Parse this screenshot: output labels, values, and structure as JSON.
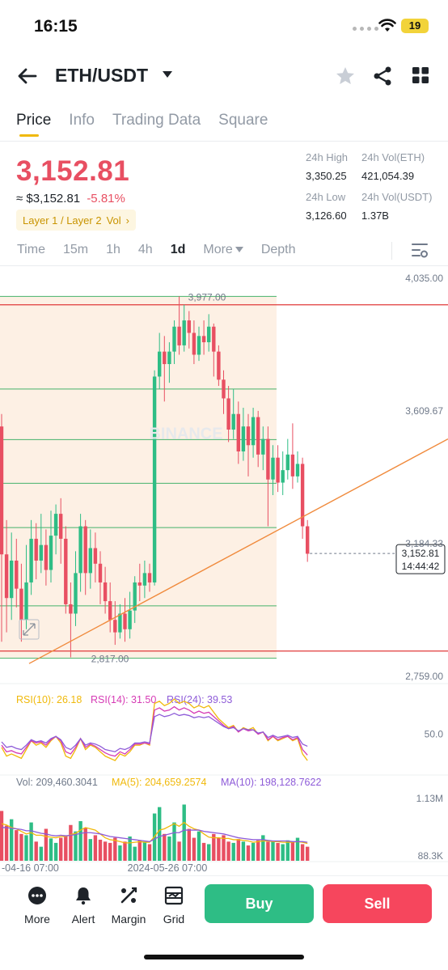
{
  "status_bar": {
    "time": "16:15",
    "battery": "19"
  },
  "header": {
    "pair": "ETH/USDT",
    "icons": [
      "back-arrow-icon",
      "caret-down-icon",
      "star-icon",
      "share-icon",
      "grid-icon"
    ]
  },
  "tabs": [
    {
      "label": "Price",
      "active": true
    },
    {
      "label": "Info"
    },
    {
      "label": "Trading Data"
    },
    {
      "label": "Square"
    }
  ],
  "price": {
    "last": "3,152.81",
    "approx": "≈ $3,152.81",
    "change": "-5.81%",
    "tags": "Layer 1 / Layer 2",
    "tag_vol": "Vol",
    "tag_arrow": "›"
  },
  "stats": {
    "high_label": "24h High",
    "high": "3,350.25",
    "vol_eth_label": "24h Vol(ETH)",
    "vol_eth": "421,054.39",
    "low_label": "24h Low",
    "low": "3,126.60",
    "vol_usdt_label": "24h Vol(USDT)",
    "vol_usdt": "1.37B"
  },
  "intervals": {
    "time": "Time",
    "m15": "15m",
    "h1": "1h",
    "h4": "4h",
    "d1": "1d",
    "more": "More",
    "depth": "Depth",
    "active": "1d"
  },
  "colors": {
    "up": "#2ebd85",
    "down": "#e84f62",
    "accent": "#f0b90b",
    "trendline": "#f08a3c",
    "level": "#e03a3a"
  },
  "chart_data": {
    "type": "candlestick",
    "price_axis": [
      "4,035.00",
      "3,609.67",
      "3,184.33",
      "2,759.00"
    ],
    "ylim": [
      2759,
      4035
    ],
    "box_high": "3,977.00",
    "box_low": "2,817.00",
    "current": "3,152.81",
    "countdown": "14:44:42",
    "watermark": "BINANCE",
    "candles": [
      {
        "o": 3560,
        "c": 3150,
        "h": 3600,
        "l": 2870
      },
      {
        "o": 3150,
        "c": 3010,
        "h": 3260,
        "l": 2900
      },
      {
        "o": 3010,
        "c": 3130,
        "h": 3220,
        "l": 2940
      },
      {
        "o": 3130,
        "c": 3040,
        "h": 3200,
        "l": 2980
      },
      {
        "o": 3040,
        "c": 2940,
        "h": 3120,
        "l": 2870
      },
      {
        "o": 2940,
        "c": 3060,
        "h": 3180,
        "l": 2910
      },
      {
        "o": 3060,
        "c": 3200,
        "h": 3260,
        "l": 3020
      },
      {
        "o": 3200,
        "c": 3130,
        "h": 3250,
        "l": 3070
      },
      {
        "o": 3130,
        "c": 3180,
        "h": 3280,
        "l": 3090
      },
      {
        "o": 3180,
        "c": 3100,
        "h": 3230,
        "l": 3050
      },
      {
        "o": 3100,
        "c": 3210,
        "h": 3290,
        "l": 3060
      },
      {
        "o": 3210,
        "c": 3280,
        "h": 3310,
        "l": 3150
      },
      {
        "o": 3280,
        "c": 3200,
        "h": 3330,
        "l": 3120
      },
      {
        "o": 3200,
        "c": 2990,
        "h": 3240,
        "l": 2960
      },
      {
        "o": 2990,
        "c": 2960,
        "h": 3060,
        "l": 2820
      },
      {
        "o": 2960,
        "c": 3090,
        "h": 3160,
        "l": 2920
      },
      {
        "o": 3090,
        "c": 3240,
        "h": 3280,
        "l": 3030
      },
      {
        "o": 3240,
        "c": 3090,
        "h": 3260,
        "l": 3020
      },
      {
        "o": 3090,
        "c": 3170,
        "h": 3230,
        "l": 3040
      },
      {
        "o": 3170,
        "c": 3120,
        "h": 3220,
        "l": 3060
      },
      {
        "o": 3120,
        "c": 3060,
        "h": 3160,
        "l": 2990
      },
      {
        "o": 3060,
        "c": 3000,
        "h": 3110,
        "l": 2960
      },
      {
        "o": 3000,
        "c": 2940,
        "h": 3060,
        "l": 2900
      },
      {
        "o": 2940,
        "c": 2900,
        "h": 3000,
        "l": 2860
      },
      {
        "o": 2900,
        "c": 2960,
        "h": 2990,
        "l": 2880
      },
      {
        "o": 2960,
        "c": 2910,
        "h": 3010,
        "l": 2870
      },
      {
        "o": 2910,
        "c": 2970,
        "h": 3030,
        "l": 2880
      },
      {
        "o": 2970,
        "c": 3060,
        "h": 3080,
        "l": 2930
      },
      {
        "o": 3060,
        "c": 3050,
        "h": 3120,
        "l": 3000
      },
      {
        "o": 3050,
        "c": 3090,
        "h": 3130,
        "l": 3010
      },
      {
        "o": 3090,
        "c": 3060,
        "h": 3120,
        "l": 3030
      },
      {
        "o": 3060,
        "c": 3720,
        "h": 3740,
        "l": 3050
      },
      {
        "o": 3720,
        "c": 3800,
        "h": 3860,
        "l": 3680
      },
      {
        "o": 3800,
        "c": 3760,
        "h": 3850,
        "l": 3640
      },
      {
        "o": 3760,
        "c": 3800,
        "h": 3830,
        "l": 3700
      },
      {
        "o": 3800,
        "c": 3880,
        "h": 3900,
        "l": 3760
      },
      {
        "o": 3880,
        "c": 3820,
        "h": 3977,
        "l": 3790
      },
      {
        "o": 3820,
        "c": 3900,
        "h": 3950,
        "l": 3800
      },
      {
        "o": 3900,
        "c": 3860,
        "h": 3930,
        "l": 3810
      },
      {
        "o": 3860,
        "c": 3790,
        "h": 3900,
        "l": 3760
      },
      {
        "o": 3790,
        "c": 3850,
        "h": 3880,
        "l": 3770
      },
      {
        "o": 3850,
        "c": 3830,
        "h": 3900,
        "l": 3790
      },
      {
        "o": 3830,
        "c": 3880,
        "h": 3920,
        "l": 3800
      },
      {
        "o": 3880,
        "c": 3800,
        "h": 3890,
        "l": 3720
      },
      {
        "o": 3800,
        "c": 3710,
        "h": 3820,
        "l": 3690
      },
      {
        "o": 3710,
        "c": 3650,
        "h": 3740,
        "l": 3600
      },
      {
        "o": 3650,
        "c": 3550,
        "h": 3690,
        "l": 3510
      },
      {
        "o": 3550,
        "c": 3600,
        "h": 3680,
        "l": 3520
      },
      {
        "o": 3600,
        "c": 3480,
        "h": 3640,
        "l": 3440
      },
      {
        "o": 3480,
        "c": 3560,
        "h": 3620,
        "l": 3450
      },
      {
        "o": 3560,
        "c": 3500,
        "h": 3600,
        "l": 3400
      },
      {
        "o": 3500,
        "c": 3590,
        "h": 3620,
        "l": 3460
      },
      {
        "o": 3590,
        "c": 3470,
        "h": 3610,
        "l": 3430
      },
      {
        "o": 3470,
        "c": 3520,
        "h": 3560,
        "l": 3420
      },
      {
        "o": 3520,
        "c": 3390,
        "h": 3560,
        "l": 3240
      },
      {
        "o": 3390,
        "c": 3460,
        "h": 3500,
        "l": 3340
      },
      {
        "o": 3460,
        "c": 3380,
        "h": 3500,
        "l": 3350
      },
      {
        "o": 3380,
        "c": 3420,
        "h": 3480,
        "l": 3340
      },
      {
        "o": 3420,
        "c": 3470,
        "h": 3520,
        "l": 3390
      },
      {
        "o": 3470,
        "c": 3400,
        "h": 3570,
        "l": 3360
      },
      {
        "o": 3400,
        "c": 3440,
        "h": 3480,
        "l": 3380
      },
      {
        "o": 3440,
        "c": 3240,
        "h": 3460,
        "l": 3200
      },
      {
        "o": 3240,
        "c": 3152,
        "h": 3260,
        "l": 3126
      }
    ],
    "rsi": {
      "labels": [
        "RSI(10): 26.18",
        "RSI(14): 31.50",
        "RSI(24): 39.53"
      ],
      "axis": "50.0",
      "colors": [
        "#f0b90b",
        "#d63bb5",
        "#8e5bd8"
      ],
      "rsi10": [
        38,
        30,
        32,
        30,
        28,
        36,
        44,
        40,
        42,
        38,
        44,
        48,
        42,
        30,
        28,
        36,
        46,
        36,
        40,
        38,
        34,
        30,
        28,
        26,
        32,
        30,
        34,
        40,
        40,
        42,
        40,
        78,
        80,
        76,
        78,
        82,
        78,
        80,
        78,
        74,
        76,
        74,
        76,
        70,
        64,
        60,
        56,
        58,
        52,
        56,
        54,
        56,
        50,
        52,
        44,
        48,
        44,
        46,
        48,
        44,
        46,
        32,
        26
      ],
      "rsi14": [
        40,
        34,
        35,
        33,
        32,
        38,
        44,
        42,
        43,
        40,
        45,
        48,
        44,
        34,
        32,
        38,
        46,
        38,
        41,
        39,
        36,
        33,
        31,
        30,
        34,
        32,
        36,
        41,
        41,
        42,
        41,
        72,
        74,
        71,
        72,
        75,
        72,
        74,
        72,
        69,
        71,
        69,
        70,
        66,
        62,
        58,
        55,
        57,
        52,
        55,
        53,
        54,
        50,
        52,
        45,
        48,
        45,
        47,
        48,
        45,
        47,
        36,
        31
      ],
      "rsi24": [
        43,
        38,
        39,
        37,
        36,
        40,
        45,
        43,
        44,
        42,
        46,
        48,
        45,
        38,
        36,
        40,
        46,
        40,
        42,
        41,
        39,
        36,
        35,
        34,
        37,
        36,
        38,
        42,
        42,
        43,
        42,
        66,
        68,
        66,
        67,
        69,
        67,
        68,
        67,
        65,
        66,
        65,
        66,
        63,
        60,
        57,
        55,
        56,
        53,
        55,
        54,
        54,
        51,
        52,
        47,
        49,
        47,
        48,
        49,
        47,
        48,
        41,
        39
      ]
    },
    "volume": {
      "labels": [
        "Vol: 209,460.3041",
        "MA(5): 204,659.2574",
        "MA(10): 198,128.7622"
      ],
      "axis": [
        "1.13M",
        "88.3K"
      ],
      "dates": [
        "-04-16 07:00",
        "2024-05-26 07:00"
      ],
      "colors": [
        "#f0b90b",
        "#8e5bd8"
      ],
      "values": [
        0.78,
        0.55,
        0.65,
        0.48,
        0.42,
        0.4,
        0.6,
        0.3,
        0.22,
        0.5,
        0.35,
        0.28,
        0.36,
        0.4,
        0.56,
        0.46,
        0.62,
        0.52,
        0.34,
        0.4,
        0.33,
        0.3,
        0.28,
        0.36,
        0.24,
        0.3,
        0.38,
        0.22,
        0.32,
        0.3,
        0.26,
        0.74,
        0.84,
        0.42,
        0.38,
        0.6,
        0.3,
        0.88,
        0.5,
        0.36,
        0.46,
        0.28,
        0.26,
        0.42,
        0.36,
        0.4,
        0.3,
        0.28,
        0.34,
        0.3,
        0.24,
        0.28,
        0.32,
        0.4,
        0.3,
        0.3,
        0.28,
        0.26,
        0.32,
        0.3,
        0.36,
        0.26,
        0.22
      ],
      "ma5": [
        0.58,
        0.56,
        0.52,
        0.5,
        0.46,
        0.42,
        0.44,
        0.4,
        0.4,
        0.38,
        0.37,
        0.36,
        0.38,
        0.38,
        0.41,
        0.43,
        0.48,
        0.52,
        0.5,
        0.48,
        0.42,
        0.36,
        0.33,
        0.32,
        0.3,
        0.28,
        0.28,
        0.29,
        0.3,
        0.29,
        0.29,
        0.38,
        0.48,
        0.5,
        0.54,
        0.58,
        0.54,
        0.6,
        0.54,
        0.5,
        0.48,
        0.42,
        0.37,
        0.36,
        0.36,
        0.35,
        0.35,
        0.33,
        0.33,
        0.32,
        0.31,
        0.29,
        0.3,
        0.31,
        0.31,
        0.3,
        0.3,
        0.29,
        0.29,
        0.29,
        0.3,
        0.29,
        0.27
      ],
      "ma10": [
        0.52,
        0.52,
        0.51,
        0.5,
        0.49,
        0.47,
        0.47,
        0.45,
        0.43,
        0.42,
        0.4,
        0.39,
        0.4,
        0.39,
        0.4,
        0.41,
        0.43,
        0.44,
        0.44,
        0.43,
        0.42,
        0.4,
        0.38,
        0.37,
        0.36,
        0.35,
        0.34,
        0.33,
        0.32,
        0.31,
        0.3,
        0.34,
        0.38,
        0.4,
        0.42,
        0.44,
        0.44,
        0.48,
        0.48,
        0.48,
        0.48,
        0.46,
        0.45,
        0.44,
        0.43,
        0.42,
        0.4,
        0.38,
        0.36,
        0.35,
        0.34,
        0.33,
        0.33,
        0.33,
        0.32,
        0.31,
        0.31,
        0.31,
        0.31,
        0.3,
        0.3,
        0.3,
        0.29
      ]
    }
  },
  "bottom_bar": {
    "more": "More",
    "alert": "Alert",
    "margin": "Margin",
    "grid": "Grid",
    "buy": "Buy",
    "sell": "Sell"
  }
}
